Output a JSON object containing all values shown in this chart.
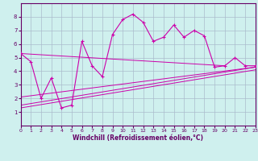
{
  "title": "",
  "xlabel": "Windchill (Refroidissement éolien,°C)",
  "bg_color": "#cff0ee",
  "grid_color": "#aabbcc",
  "line_color": "#cc00aa",
  "xlim": [
    0,
    23
  ],
  "ylim": [
    0,
    9
  ],
  "xticks": [
    0,
    1,
    2,
    3,
    4,
    5,
    6,
    7,
    8,
    9,
    10,
    11,
    12,
    13,
    14,
    15,
    16,
    17,
    18,
    19,
    20,
    21,
    22,
    23
  ],
  "yticks": [
    1,
    2,
    3,
    4,
    5,
    6,
    7,
    8
  ],
  "main_x": [
    0,
    1,
    2,
    3,
    4,
    5,
    6,
    7,
    8,
    9,
    10,
    11,
    12,
    13,
    14,
    15,
    16,
    17,
    18,
    19,
    20,
    21,
    22,
    23
  ],
  "main_y": [
    5.3,
    4.7,
    2.0,
    3.5,
    1.3,
    1.5,
    6.2,
    4.4,
    3.6,
    6.7,
    7.8,
    8.2,
    7.6,
    6.2,
    6.5,
    7.4,
    6.5,
    7.0,
    6.6,
    4.3,
    4.4,
    5.0,
    4.4,
    4.4
  ],
  "trend1_x": [
    0,
    20
  ],
  "trend1_y": [
    5.3,
    4.4
  ],
  "trend2_x": [
    0,
    23
  ],
  "trend2_y": [
    2.1,
    4.3
  ],
  "trend3_x": [
    0,
    23
  ],
  "trend3_y": [
    1.5,
    4.3
  ],
  "trend4_x": [
    0,
    23
  ],
  "trend4_y": [
    1.3,
    4.1
  ]
}
